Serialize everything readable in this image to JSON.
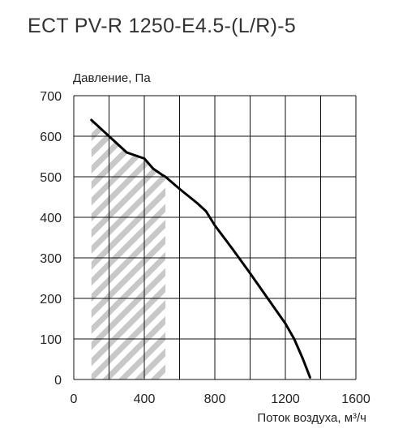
{
  "title": "ECT PV-R 1250-E4.5-(L/R)-5",
  "chart_data": {
    "type": "line",
    "title": "ECT PV-R 1250-E4.5-(L/R)-5",
    "xlabel": "Поток воздуха, м³/ч",
    "ylabel": "Давление, Па",
    "xlim": [
      0,
      1600
    ],
    "ylim": [
      0,
      700
    ],
    "x_ticks": [
      "0",
      "400",
      "800",
      "1200",
      "1600"
    ],
    "y_ticks": [
      "0",
      "100",
      "200",
      "300",
      "400",
      "500",
      "600",
      "700"
    ],
    "grid": true,
    "series": [
      {
        "color": "#000000",
        "x": [
          100,
          200,
          250,
          300,
          400,
          450,
          500,
          520,
          600,
          700,
          750,
          800,
          900,
          1000,
          1100,
          1200,
          1250,
          1300,
          1340
        ],
        "y": [
          640,
          600,
          580,
          560,
          545,
          520,
          505,
          500,
          470,
          435,
          415,
          380,
          322,
          262,
          200,
          138,
          100,
          50,
          5
        ]
      }
    ],
    "shaded_region": {
      "pattern": "diagonal-hatch",
      "color": "#c8c8c8",
      "x_range": [
        100,
        520
      ],
      "bounded_above_by_series": true
    }
  }
}
